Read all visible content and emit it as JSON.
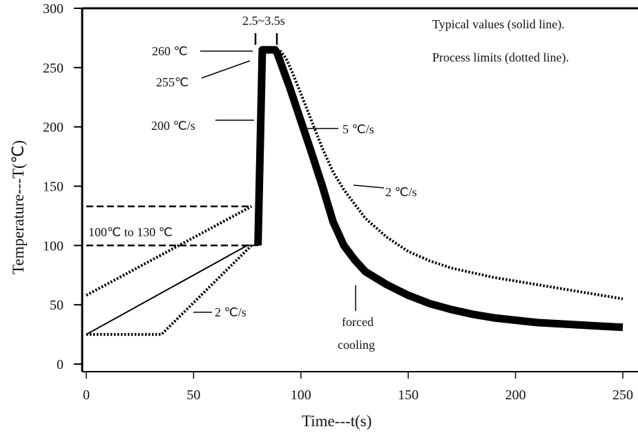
{
  "chart_data": {
    "type": "line",
    "xlabel": "Time---t(s)",
    "ylabel": "Temperature---T(℃)",
    "xlim": [
      0,
      250
    ],
    "ylim": [
      0,
      300
    ],
    "x_ticks": [
      "0",
      "50",
      "100",
      "150",
      "200",
      "250"
    ],
    "y_ticks": [
      "0",
      "50",
      "100",
      "150",
      "200",
      "250",
      "300"
    ],
    "grid": false,
    "legend_notes": [
      "Typical values (solid line).",
      "Process limits (dotted line)."
    ],
    "series": [
      {
        "style": "solid",
        "x": [
          0,
          75,
          80,
          80,
          81,
          82,
          84,
          86,
          88,
          89,
          95,
          100,
          105,
          110,
          115,
          120,
          125,
          130,
          140,
          150,
          160,
          170,
          180,
          190,
          200,
          210,
          220,
          230,
          240,
          250
        ],
        "y": [
          25,
          100,
          100,
          100,
          180,
          265,
          265,
          265,
          265,
          262,
          232,
          205,
          178,
          150,
          120,
          100,
          88,
          78,
          67,
          58,
          51,
          46,
          42,
          39,
          37,
          35,
          34,
          33,
          32,
          31
        ]
      },
      {
        "style": "dotted",
        "x": [
          0,
          35,
          77
        ],
        "y": [
          25,
          25,
          100
        ]
      },
      {
        "style": "dotted",
        "x": [
          0,
          77
        ],
        "y": [
          58,
          133
        ]
      },
      {
        "style": "dotted",
        "x": [
          84,
          86,
          88,
          90,
          93,
          96,
          100,
          105,
          110,
          115,
          120,
          125,
          130,
          140,
          150,
          160,
          170,
          180,
          190,
          200,
          210,
          220,
          230,
          240,
          250
        ],
        "y": [
          265,
          265,
          265,
          265,
          258,
          246,
          228,
          205,
          182,
          162,
          147,
          135,
          123,
          107,
          95,
          87,
          81,
          77,
          73,
          70,
          67,
          64,
          61,
          58,
          55
        ]
      },
      {
        "style": "dashed",
        "x": [
          0,
          76
        ],
        "y": [
          100,
          100
        ]
      },
      {
        "style": "dashed",
        "x": [
          0,
          76
        ],
        "y": [
          133,
          133
        ]
      }
    ],
    "annotations": [
      {
        "text": "2.5~3.5s"
      },
      {
        "text": "260 ℃"
      },
      {
        "text": "255℃"
      },
      {
        "text": "200 ℃/s"
      },
      {
        "text": "5 ℃/s"
      },
      {
        "text": "2  ℃/s"
      },
      {
        "text": "100℃  to 130 ℃"
      },
      {
        "text": "2 ℃/s"
      },
      {
        "text": "forced"
      },
      {
        "text": "cooling"
      }
    ]
  }
}
